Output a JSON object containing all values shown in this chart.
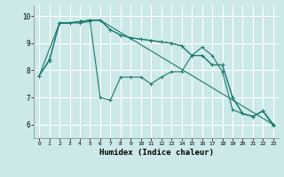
{
  "xlabel": "Humidex (Indice chaleur)",
  "background_color": "#cce8e8",
  "grid_color": "#ffffff",
  "line_color": "#1a7a6e",
  "xlim": [
    -0.5,
    23.5
  ],
  "ylim": [
    5.5,
    10.4
  ],
  "yticks": [
    6,
    7,
    8,
    9,
    10
  ],
  "xticks": [
    0,
    1,
    2,
    3,
    4,
    5,
    6,
    7,
    8,
    9,
    10,
    11,
    12,
    13,
    14,
    15,
    16,
    17,
    18,
    19,
    20,
    21,
    22,
    23
  ],
  "line1_x": [
    0,
    1,
    2,
    3,
    4,
    5,
    6,
    7,
    8,
    9,
    10,
    11,
    12,
    13,
    14,
    15,
    16,
    17,
    18,
    19,
    20,
    21,
    22,
    23
  ],
  "line1_y": [
    7.8,
    8.4,
    9.75,
    9.75,
    9.75,
    9.8,
    7.0,
    6.9,
    7.75,
    7.75,
    7.75,
    7.5,
    7.75,
    7.95,
    7.95,
    8.55,
    8.85,
    8.55,
    7.95,
    6.55,
    6.4,
    6.3,
    6.5,
    5.95
  ],
  "line2_x": [
    0,
    1,
    2,
    3,
    4,
    5,
    6,
    7,
    8,
    9,
    10,
    11,
    12,
    13,
    14,
    15,
    16,
    17,
    18,
    19,
    20,
    21,
    22,
    23
  ],
  "line2_y": [
    7.8,
    8.35,
    9.75,
    9.75,
    9.8,
    9.85,
    9.85,
    9.5,
    9.3,
    9.2,
    9.15,
    9.1,
    9.05,
    9.0,
    8.9,
    8.55,
    8.55,
    8.2,
    8.2,
    7.0,
    6.4,
    6.3,
    6.5,
    6.0
  ],
  "line3_x": [
    0,
    2,
    3,
    4,
    5,
    6,
    23
  ],
  "line3_y": [
    7.8,
    9.75,
    9.75,
    9.8,
    9.85,
    9.85,
    6.0
  ],
  "line4_x": [
    2,
    3,
    4,
    5,
    6,
    7,
    8,
    9,
    10,
    11,
    12,
    13,
    14,
    15,
    16,
    17,
    18,
    19,
    20,
    21,
    22,
    23
  ],
  "line4_y": [
    9.75,
    9.75,
    9.8,
    9.85,
    9.85,
    9.5,
    9.3,
    9.2,
    9.15,
    9.1,
    9.05,
    9.0,
    8.9,
    8.55,
    8.55,
    8.2,
    8.2,
    7.0,
    6.4,
    6.3,
    6.5,
    6.0
  ]
}
